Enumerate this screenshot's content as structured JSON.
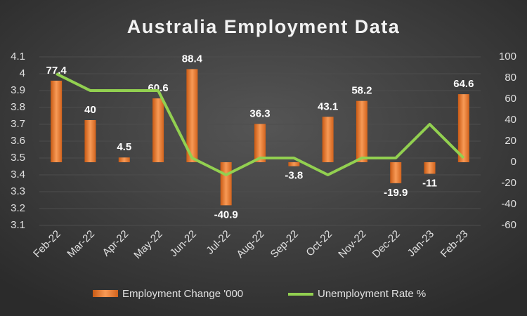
{
  "chart_data": {
    "type": "bar-line",
    "title": "Australia Employment Data",
    "categories": [
      "Feb-22",
      "Mar-22",
      "Apr-22",
      "May-22",
      "Jun-22",
      "Jul-22",
      "Aug-22",
      "Sep-22",
      "Oct-22",
      "Nov-22",
      "Dec-22",
      "Jan-23",
      "Feb-23"
    ],
    "series": [
      {
        "name": "Employment Change '000",
        "type": "bar",
        "axis": "y2",
        "color": "#ed7d31",
        "values": [
          77.4,
          40,
          4.5,
          60.6,
          88.4,
          -40.9,
          36.3,
          -3.8,
          43.1,
          58.2,
          -19.9,
          -11,
          64.6
        ]
      },
      {
        "name": "Unemployment Rate %",
        "type": "line",
        "color": "#92d050",
        "values": [
          4.0,
          3.9,
          3.9,
          3.9,
          3.5,
          3.4,
          3.5,
          3.5,
          3.4,
          3.5,
          3.5,
          3.7,
          3.5
        ]
      }
    ],
    "ylim": [
      3.1,
      4.1
    ],
    "yticks": [
      3.1,
      3.2,
      3.3,
      3.4,
      3.5,
      3.6,
      3.7,
      3.8,
      3.9,
      4,
      4.1
    ],
    "y2lim": [
      -60,
      100
    ],
    "y2ticks": [
      -60,
      -40,
      -20,
      0,
      20,
      40,
      60,
      80,
      100
    ],
    "grid": true
  }
}
